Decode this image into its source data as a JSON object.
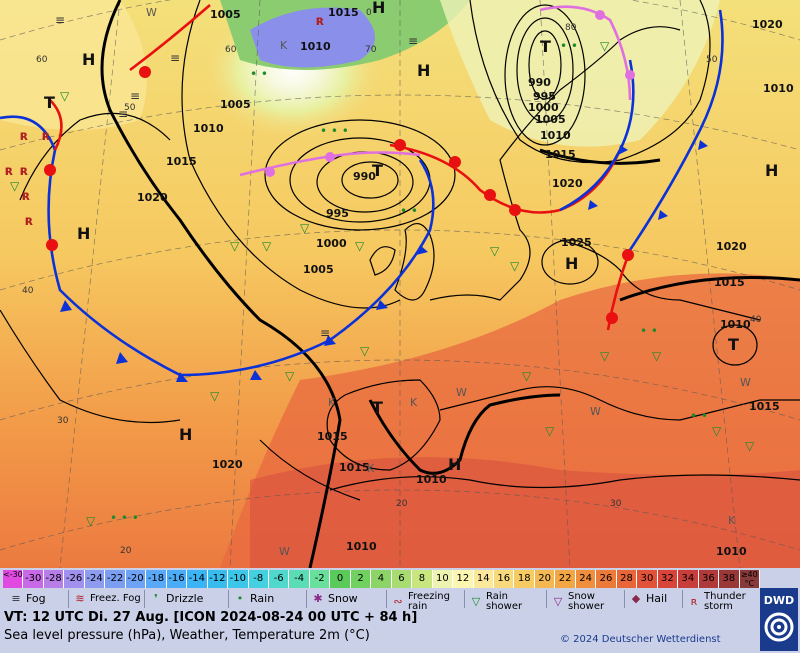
{
  "map": {
    "pressure_labels": [
      "1005",
      "1015",
      "1010",
      "1005",
      "1010",
      "1015",
      "1020",
      "1020",
      "1025",
      "1020",
      "1015",
      "1015",
      "1010",
      "1010",
      "1015",
      "1020",
      "990",
      "995",
      "1000",
      "1005",
      "990",
      "995",
      "1000",
      "1005",
      "1010",
      "1015",
      "1020",
      "1015",
      "1010",
      "1010",
      "1010"
    ],
    "high_low": [
      "H",
      "H",
      "H",
      "T",
      "H",
      "H",
      "H",
      "T",
      "T",
      "H",
      "T",
      "T",
      "H"
    ],
    "latitude_labels": [
      "60",
      "50",
      "40",
      "30",
      "20",
      "60",
      "70",
      "80",
      "50",
      "40",
      "30",
      "20",
      "0"
    ],
    "marks": [
      "W",
      "W",
      "W",
      "W",
      "W",
      "K",
      "K",
      "K",
      "K",
      "K"
    ]
  },
  "legend": {
    "scale": [
      "<-30",
      "-30",
      "-28",
      "-26",
      "-24",
      "-22",
      "-20",
      "-18",
      "-16",
      "-14",
      "-12",
      "-10",
      "-8",
      "-6",
      "-4",
      "-2",
      "0",
      "2",
      "4",
      "6",
      "8",
      "10",
      "12",
      "14",
      "16",
      "18",
      "20",
      "22",
      "24",
      "26",
      "28",
      "30",
      "32",
      "34",
      "36",
      "38",
      "≥40 °C"
    ],
    "scale_colors": [
      "#e04ae0",
      "#c86ae8",
      "#b77ee8",
      "#a290ee",
      "#8e9cf0",
      "#7c9ef2",
      "#6ea2f6",
      "#5aa8f8",
      "#4aacf6",
      "#3ab4f4",
      "#38bcee",
      "#3cc6e8",
      "#44d0e0",
      "#50d8cc",
      "#5cdcb4",
      "#68e09c",
      "#5acb5a",
      "#70d060",
      "#8cd468",
      "#a8dc70",
      "#c8e680",
      "#eef4b0",
      "#fcf6b0",
      "#fbe89a",
      "#f8da7c",
      "#f6cc62",
      "#f4b852",
      "#f2a644",
      "#ef8e3c",
      "#ec7a38",
      "#e86638",
      "#e25238",
      "#d84438",
      "#c83e3a",
      "#b03a3a",
      "#9a3838",
      "#883a3a"
    ],
    "items": [
      {
        "icon": "≡",
        "label": "Fog"
      },
      {
        "icon": "≋",
        "label": "Freez. Fog"
      },
      {
        "icon": "❜",
        "label": "Drizzle"
      },
      {
        "icon": "•",
        "label": "Rain"
      },
      {
        "icon": "✱",
        "label": "Snow"
      },
      {
        "icon": "∾",
        "label": "Freezing rain"
      },
      {
        "icon": "▽",
        "label": "Rain shower"
      },
      {
        "icon": "▽",
        "label": "Snow shower"
      },
      {
        "icon": "◆",
        "label": "Hail"
      },
      {
        "icon": "ʀ",
        "label": "Thunder storm"
      }
    ],
    "valid_time": "VT: 12 UTC Di.  27 Aug. [ICON 2024-08-24  00 UTC + 84 h]",
    "subtitle": "Sea level pressure (hPa), Weather, Temperature 2m (°C)",
    "copyright": "© 2024 Deutscher Wetterdienst",
    "brand": "DWD"
  }
}
